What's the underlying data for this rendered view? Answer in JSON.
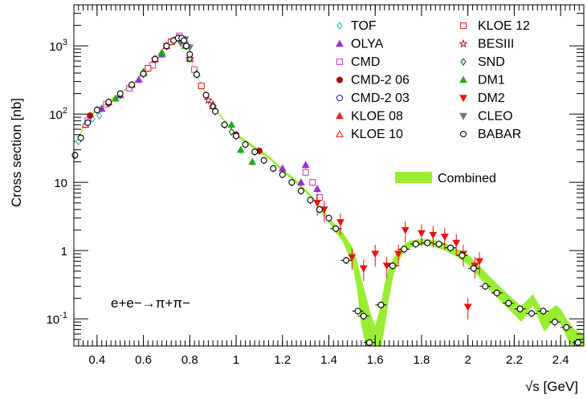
{
  "chart_data": {
    "type": "scatter",
    "xlabel": "√s   [GeV]",
    "ylabel": "Cross section   [nb]",
    "annotation": "e+e−→π+π−",
    "yscale": "log",
    "xlim": [
      0.3,
      2.5
    ],
    "ylim": [
      0.04,
      4000
    ],
    "x_ticks": [
      "0.4",
      "0.6",
      "0.8",
      "1",
      "1.2",
      "1.4",
      "1.6",
      "1.8",
      "2",
      "2.2",
      "2.4"
    ],
    "y_ticks": [
      "10^-1",
      "1",
      "10",
      "10^2",
      "10^3"
    ],
    "legend_placement": "top-right",
    "combined": {
      "name": "Combined",
      "color": "#99ee33",
      "x": [
        0.305,
        0.32,
        0.35,
        0.4,
        0.45,
        0.5,
        0.55,
        0.6,
        0.65,
        0.7,
        0.74,
        0.76,
        0.775,
        0.783,
        0.79,
        0.82,
        0.86,
        0.9,
        0.95,
        1.0,
        1.05,
        1.1,
        1.15,
        1.2,
        1.25,
        1.3,
        1.35,
        1.38,
        1.42,
        1.46,
        1.5,
        1.52,
        1.54,
        1.56,
        1.58,
        1.6,
        1.62,
        1.64,
        1.66,
        1.68,
        1.7,
        1.72,
        1.75,
        1.8,
        1.85,
        1.9,
        1.95,
        2.0,
        2.05,
        2.1,
        2.15,
        2.2,
        2.23,
        2.25,
        2.28,
        2.31,
        2.33,
        2.36,
        2.38,
        2.4,
        2.43,
        2.46,
        2.5
      ],
      "y": [
        25,
        45,
        75,
        120,
        155,
        200,
        270,
        400,
        650,
        1050,
        1300,
        1300,
        1150,
        1000,
        850,
        450,
        230,
        130,
        80,
        50,
        38,
        29,
        22,
        15,
        11,
        7.5,
        5,
        3.5,
        2.3,
        1.6,
        0.9,
        0.5,
        0.22,
        0.1,
        0.05,
        0.03,
        0.06,
        0.18,
        0.35,
        0.6,
        0.85,
        1.05,
        1.25,
        1.35,
        1.3,
        1.15,
        0.95,
        0.75,
        0.5,
        0.32,
        0.22,
        0.15,
        0.12,
        0.14,
        0.19,
        0.12,
        0.09,
        0.11,
        0.13,
        0.11,
        0.07,
        0.05,
        0.04
      ],
      "low": [
        24,
        43,
        72,
        116,
        150,
        194,
        262,
        388,
        630,
        1020,
        1260,
        1260,
        1115,
        970,
        825,
        436,
        223,
        126,
        77,
        48,
        36,
        27.5,
        21,
        14.2,
        10.4,
        7.1,
        4.7,
        3.25,
        2.05,
        1.35,
        0.65,
        0.3,
        0.08,
        0.04,
        0.03,
        0.03,
        0.03,
        0.07,
        0.2,
        0.45,
        0.7,
        0.9,
        1.1,
        1.2,
        1.16,
        1.0,
        0.82,
        0.62,
        0.4,
        0.25,
        0.17,
        0.115,
        0.09,
        0.11,
        0.16,
        0.09,
        0.065,
        0.085,
        0.1,
        0.085,
        0.05,
        0.035,
        0.03
      ],
      "high": [
        26,
        47,
        78,
        124,
        160,
        206,
        278,
        412,
        670,
        1080,
        1340,
        1340,
        1185,
        1030,
        875,
        464,
        237,
        134,
        83,
        52,
        40,
        30.5,
        23,
        15.8,
        11.6,
        7.9,
        5.3,
        3.75,
        2.55,
        1.85,
        1.15,
        0.75,
        0.4,
        0.22,
        0.12,
        0.08,
        0.14,
        0.32,
        0.55,
        0.78,
        1.0,
        1.2,
        1.4,
        1.5,
        1.44,
        1.3,
        1.08,
        0.88,
        0.6,
        0.4,
        0.27,
        0.19,
        0.155,
        0.18,
        0.23,
        0.155,
        0.12,
        0.14,
        0.16,
        0.14,
        0.095,
        0.07,
        0.06
      ]
    },
    "series": [
      {
        "name": "TOF",
        "color": "#33bbbb",
        "marker": "diamond-open",
        "x": [
          0.32,
          0.35,
          0.38,
          0.41
        ],
        "y": [
          40,
          70,
          85,
          95
        ]
      },
      {
        "name": "OLYA",
        "color": "#9933cc",
        "marker": "triangle-up",
        "x": [
          0.42,
          0.5,
          0.58,
          0.68,
          0.76,
          0.8,
          0.9,
          1.0,
          1.2,
          1.28,
          1.3,
          1.35
        ],
        "y": [
          120,
          190,
          320,
          750,
          1350,
          700,
          140,
          50,
          16,
          10,
          18,
          8
        ]
      },
      {
        "name": "CMD",
        "color": "#cc44cc",
        "marker": "square-open",
        "x": [
          0.36,
          0.44,
          0.54,
          0.64,
          0.7,
          0.755,
          0.78,
          0.82,
          1.3,
          1.33,
          1.36
        ],
        "y": [
          80,
          140,
          240,
          520,
          1000,
          1400,
          1050,
          450,
          14,
          10,
          6
        ]
      },
      {
        "name": "CMD-2 06",
        "color": "#aa1111",
        "marker": "circle",
        "x": [
          0.37,
          0.45,
          0.6,
          0.76,
          0.9,
          1.0,
          1.1
        ],
        "y": [
          95,
          145,
          390,
          1300,
          130,
          50,
          29
        ]
      },
      {
        "name": "CMD-2 03",
        "color": "#2222bb",
        "marker": "circle-open",
        "x": [
          0.62,
          0.7,
          0.77,
          0.85
        ],
        "y": [
          470,
          1000,
          1250,
          260
        ]
      },
      {
        "name": "KLOE 08",
        "color": "#ee2222",
        "marker": "triangle-up",
        "x": [
          0.6,
          0.7,
          0.8,
          0.9
        ],
        "y": [
          400,
          1000,
          650,
          130
        ]
      },
      {
        "name": "KLOE 10",
        "color": "#ee2222",
        "marker": "triangle-up-open",
        "x": [
          0.35,
          0.45,
          0.55,
          0.65
        ],
        "y": [
          70,
          150,
          270,
          640
        ]
      },
      {
        "name": "KLOE 12",
        "color": "#ee2222",
        "marker": "square-open",
        "x": [
          0.62,
          0.72,
          0.85
        ],
        "y": [
          470,
          1150,
          260
        ]
      },
      {
        "name": "BESIII",
        "color": "#aa1111",
        "marker": "star-open",
        "x": [
          0.65,
          0.75,
          0.8,
          0.88
        ],
        "y": [
          640,
          1300,
          650,
          160
        ]
      },
      {
        "name": "SND",
        "color": "#116611",
        "marker": "diamond-open",
        "x": [
          0.4,
          0.5,
          0.6,
          0.7,
          0.8,
          0.9,
          0.98
        ],
        "y": [
          115,
          190,
          390,
          980,
          650,
          130,
          55
        ]
      },
      {
        "name": "DM1",
        "color": "#22aa22",
        "marker": "triangle-up",
        "x": [
          0.48,
          0.6,
          0.68,
          0.78,
          0.83,
          0.98,
          1.02,
          1.07
        ],
        "y": [
          170,
          420,
          800,
          1000,
          400,
          70,
          30,
          20
        ]
      },
      {
        "name": "DM2",
        "color": "#ee1111",
        "marker": "triangle-down",
        "x": [
          1.35,
          1.38,
          1.45,
          1.5,
          1.55,
          1.6,
          1.65,
          1.7,
          1.73,
          1.8,
          1.85,
          1.9,
          1.95,
          1.98,
          2.0,
          2.03,
          2.05
        ],
        "y": [
          5,
          4,
          2.6,
          0.8,
          0.55,
          0.9,
          0.6,
          0.9,
          2.0,
          1.8,
          1.7,
          1.6,
          1.3,
          0.9,
          0.15,
          0.6,
          0.7
        ]
      },
      {
        "name": "CLEO",
        "color": "#777777",
        "marker": "triangle-down",
        "x": [
          0.76,
          0.78,
          0.8
        ],
        "y": [
          1100,
          1250,
          950
        ]
      },
      {
        "name": "BABAR",
        "color": "#000000",
        "marker": "circle-open",
        "x": [
          0.305,
          0.33,
          0.36,
          0.4,
          0.45,
          0.5,
          0.55,
          0.6,
          0.65,
          0.7,
          0.73,
          0.75,
          0.765,
          0.775,
          0.785,
          0.8,
          0.83,
          0.87,
          0.91,
          0.95,
          1.0,
          1.04,
          1.08,
          1.12,
          1.16,
          1.2,
          1.24,
          1.28,
          1.32,
          1.36,
          1.4,
          1.43,
          1.475,
          1.525,
          1.55,
          1.575,
          1.625,
          1.675,
          1.725,
          1.775,
          1.825,
          1.875,
          1.925,
          1.975,
          2.025,
          2.075,
          2.125,
          2.175,
          2.225,
          2.275,
          2.325,
          2.375,
          2.425,
          2.475
        ],
        "y": [
          25,
          45,
          75,
          115,
          150,
          200,
          270,
          390,
          640,
          1000,
          1200,
          1300,
          1300,
          1200,
          1000,
          750,
          380,
          190,
          110,
          70,
          48,
          36,
          28,
          21,
          16,
          13,
          10,
          7.5,
          5.5,
          4,
          3,
          2.1,
          0.72,
          0.13,
          0.11,
          0.045,
          0.16,
          0.6,
          1.05,
          1.25,
          1.3,
          1.25,
          1.1,
          0.85,
          0.55,
          0.3,
          0.24,
          0.17,
          0.14,
          0.12,
          0.13,
          0.09,
          0.075,
          0.045
        ]
      }
    ]
  }
}
